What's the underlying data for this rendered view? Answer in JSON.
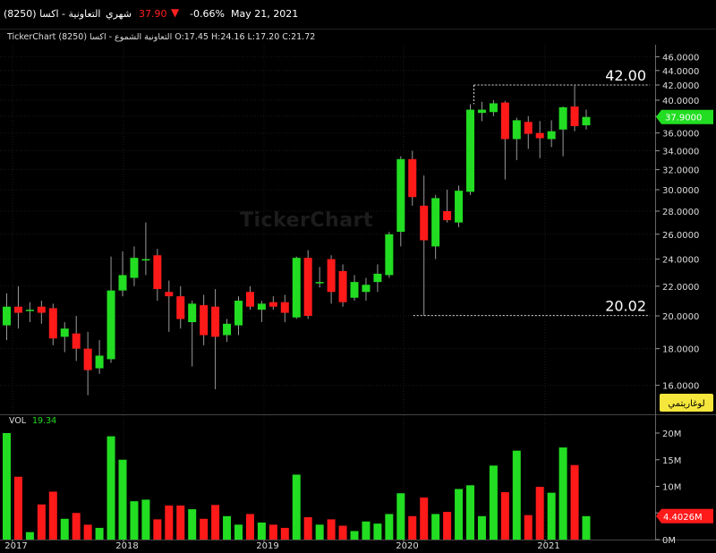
{
  "header": {
    "title": "التعاونية - اكسا (8250)",
    "period": "شهري",
    "price": "37.90",
    "change": "-0.66%",
    "date": "May 21, 2021",
    "down_color": "#ff2020"
  },
  "ohlc_line": "TickerChart التعاونية الشموع - اكسا (8250) O:17.45  H:24.16  L:17.20  C:21.72",
  "watermark": "TickerChart",
  "chart_data": {
    "type": "candlestick",
    "price_axis": {
      "ticks": [
        "46.0000",
        "44.0000",
        "42.0000",
        "40.0000",
        "38.0000",
        "36.0000",
        "34.0000",
        "32.0000",
        "30.0000",
        "28.0000",
        "26.0000",
        "24.0000",
        "22.0000",
        "20.0000",
        "18.0000",
        "16.0000"
      ],
      "scale": "log",
      "label_button": "لوغاريتمي",
      "last_price_label": "37.9000"
    },
    "volume_axis": {
      "ticks": [
        "20M",
        "15M",
        "10M",
        "5M",
        "0M"
      ],
      "ylim": [
        0,
        22
      ],
      "last_volume_label": "4.4026M"
    },
    "x_labels": [
      "2017",
      "2018",
      "2019",
      "2020",
      "2021"
    ],
    "annotations": [
      "42.00",
      "20.02"
    ],
    "volume_title": "VOL",
    "volume_value": "19.34",
    "up_color": "#22dd22",
    "down_color": "#ff1a1a",
    "candles": [
      {
        "o": 19.4,
        "h": 21.5,
        "l": 18.5,
        "c": 20.6,
        "v": 20
      },
      {
        "o": 20.6,
        "h": 22.0,
        "l": 19.2,
        "c": 20.2,
        "v": 11.8
      },
      {
        "o": 20.4,
        "h": 20.9,
        "l": 19.6,
        "c": 20.4,
        "v": 1.4
      },
      {
        "o": 20.6,
        "h": 21.0,
        "l": 19.5,
        "c": 20.2,
        "v": 6.6
      },
      {
        "o": 20.5,
        "h": 20.8,
        "l": 18.2,
        "c": 18.6,
        "v": 9.0
      },
      {
        "o": 18.7,
        "h": 19.6,
        "l": 17.8,
        "c": 19.2,
        "v": 3.9
      },
      {
        "o": 18.9,
        "h": 20.0,
        "l": 17.3,
        "c": 18.0,
        "v": 5.0
      },
      {
        "o": 18.0,
        "h": 19.0,
        "l": 15.5,
        "c": 16.8,
        "v": 2.8
      },
      {
        "o": 16.9,
        "h": 18.5,
        "l": 16.6,
        "c": 17.6,
        "v": 2.2
      },
      {
        "o": 17.4,
        "h": 24.2,
        "l": 17.2,
        "c": 21.7,
        "v": 19.4
      },
      {
        "o": 21.7,
        "h": 24.6,
        "l": 21.3,
        "c": 22.8,
        "v": 15.0
      },
      {
        "o": 22.6,
        "h": 25.0,
        "l": 22.0,
        "c": 24.1,
        "v": 7.2
      },
      {
        "o": 23.9,
        "h": 27.0,
        "l": 22.8,
        "c": 24.0,
        "v": 7.5
      },
      {
        "o": 24.3,
        "h": 24.8,
        "l": 21.0,
        "c": 21.8,
        "v": 3.8
      },
      {
        "o": 21.6,
        "h": 22.4,
        "l": 19.0,
        "c": 21.3,
        "v": 6.4
      },
      {
        "o": 21.3,
        "h": 22.0,
        "l": 19.2,
        "c": 19.8,
        "v": 6.4
      },
      {
        "o": 19.6,
        "h": 21.0,
        "l": 17.0,
        "c": 20.8,
        "v": 5.7
      },
      {
        "o": 20.7,
        "h": 21.4,
        "l": 18.2,
        "c": 18.8,
        "v": 3.9
      },
      {
        "o": 20.6,
        "h": 21.8,
        "l": 15.8,
        "c": 18.7,
        "v": 6.5
      },
      {
        "o": 18.8,
        "h": 19.8,
        "l": 18.4,
        "c": 19.5,
        "v": 4.4
      },
      {
        "o": 19.4,
        "h": 21.3,
        "l": 18.8,
        "c": 21.0,
        "v": 2.8
      },
      {
        "o": 21.6,
        "h": 22.0,
        "l": 20.4,
        "c": 20.6,
        "v": 4.8
      },
      {
        "o": 20.4,
        "h": 21.0,
        "l": 19.6,
        "c": 20.8,
        "v": 3.2
      },
      {
        "o": 20.9,
        "h": 21.3,
        "l": 20.4,
        "c": 20.6,
        "v": 2.8
      },
      {
        "o": 20.9,
        "h": 21.4,
        "l": 19.6,
        "c": 20.2,
        "v": 2.2
      },
      {
        "o": 19.9,
        "h": 24.2,
        "l": 19.8,
        "c": 24.1,
        "v": 12.2
      },
      {
        "o": 24.1,
        "h": 24.7,
        "l": 19.8,
        "c": 20.0,
        "v": 4.2
      },
      {
        "o": 22.3,
        "h": 23.4,
        "l": 21.9,
        "c": 22.3,
        "v": 2.8
      },
      {
        "o": 24.0,
        "h": 24.3,
        "l": 20.8,
        "c": 21.6,
        "v": 3.8
      },
      {
        "o": 23.1,
        "h": 23.6,
        "l": 20.6,
        "c": 20.9,
        "v": 2.6
      },
      {
        "o": 21.2,
        "h": 22.8,
        "l": 21.0,
        "c": 22.3,
        "v": 1.6
      },
      {
        "o": 21.6,
        "h": 22.6,
        "l": 21.0,
        "c": 22.1,
        "v": 3.4
      },
      {
        "o": 22.3,
        "h": 23.6,
        "l": 21.6,
        "c": 22.9,
        "v": 3.0
      },
      {
        "o": 22.8,
        "h": 26.2,
        "l": 22.6,
        "c": 26.0,
        "v": 4.8
      },
      {
        "o": 26.2,
        "h": 33.4,
        "l": 25.0,
        "c": 33.1,
        "v": 8.7
      },
      {
        "o": 33.1,
        "h": 34.0,
        "l": 28.5,
        "c": 29.3,
        "v": 4.4
      },
      {
        "o": 28.5,
        "h": 31.4,
        "l": 20.0,
        "c": 25.5,
        "v": 7.9
      },
      {
        "o": 25.0,
        "h": 29.5,
        "l": 24.0,
        "c": 29.2,
        "v": 4.8
      },
      {
        "o": 28.0,
        "h": 30.0,
        "l": 27.0,
        "c": 27.2,
        "v": 5.2
      },
      {
        "o": 27.0,
        "h": 30.4,
        "l": 26.6,
        "c": 29.9,
        "v": 9.5
      },
      {
        "o": 29.8,
        "h": 39.5,
        "l": 29.5,
        "c": 38.8,
        "v": 10.2
      },
      {
        "o": 38.4,
        "h": 39.8,
        "l": 37.4,
        "c": 38.8,
        "v": 4.4
      },
      {
        "o": 38.5,
        "h": 40.0,
        "l": 38.0,
        "c": 39.6,
        "v": 13.9
      },
      {
        "o": 39.7,
        "h": 39.9,
        "l": 31.0,
        "c": 35.3,
        "v": 8.9
      },
      {
        "o": 35.3,
        "h": 37.8,
        "l": 33.0,
        "c": 37.5,
        "v": 16.7
      },
      {
        "o": 37.3,
        "h": 38.0,
        "l": 34.2,
        "c": 35.9,
        "v": 4.6
      },
      {
        "o": 36.0,
        "h": 37.4,
        "l": 33.2,
        "c": 35.4,
        "v": 9.9
      },
      {
        "o": 35.3,
        "h": 37.5,
        "l": 34.4,
        "c": 36.2,
        "v": 8.8
      },
      {
        "o": 36.4,
        "h": 39.2,
        "l": 33.4,
        "c": 39.1,
        "v": 17.3
      },
      {
        "o": 39.2,
        "h": 42.0,
        "l": 36.2,
        "c": 36.8,
        "v": 14.0
      },
      {
        "o": 36.9,
        "h": 38.8,
        "l": 36.4,
        "c": 37.9,
        "v": 4.4
      }
    ]
  }
}
